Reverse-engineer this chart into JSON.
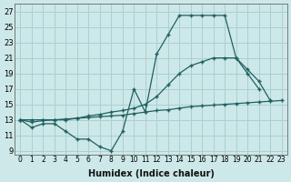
{
  "xlabel": "Humidex (Indice chaleur)",
  "bg_color": "#cde8e8",
  "grid_color": "#aacfcf",
  "line_color": "#206060",
  "xlim": [
    -0.5,
    23.5
  ],
  "ylim": [
    8.5,
    28
  ],
  "xticks": [
    0,
    1,
    2,
    3,
    4,
    5,
    6,
    7,
    8,
    9,
    10,
    11,
    12,
    13,
    14,
    15,
    16,
    17,
    18,
    19,
    20,
    21,
    22,
    23
  ],
  "yticks": [
    9,
    11,
    13,
    15,
    17,
    19,
    21,
    23,
    25,
    27
  ],
  "line1_x": [
    0,
    1,
    2,
    3,
    4,
    5,
    6,
    7,
    8,
    9,
    10,
    11,
    12,
    13,
    14,
    15,
    16,
    17,
    18,
    19,
    20,
    21
  ],
  "line1_y": [
    13,
    12,
    12.5,
    12.5,
    11.5,
    10.5,
    10.5,
    9.5,
    9,
    11.5,
    17,
    14,
    21.5,
    24,
    26.5,
    26.5,
    26.5,
    26.5,
    26.5,
    21,
    19,
    17
  ],
  "line2_x": [
    0,
    1,
    2,
    3,
    4,
    5,
    6,
    7,
    8,
    9,
    10,
    11,
    12,
    13,
    14,
    15,
    16,
    17,
    18,
    19,
    20,
    21,
    22,
    23
  ],
  "line2_y": [
    13,
    12.7,
    12.9,
    13.0,
    13.1,
    13.2,
    13.3,
    13.4,
    13.5,
    13.6,
    13.8,
    14.0,
    14.2,
    14.3,
    14.5,
    14.7,
    14.8,
    14.9,
    15.0,
    15.1,
    15.2,
    15.3,
    15.4,
    15.5
  ],
  "line3_x": [
    0,
    1,
    2,
    3,
    4,
    5,
    6,
    7,
    8,
    9,
    10,
    11,
    12,
    13,
    14,
    15,
    16,
    17,
    18,
    19,
    20,
    21,
    22
  ],
  "line3_y": [
    13,
    13,
    13,
    13,
    13,
    13.2,
    13.5,
    13.7,
    14.0,
    14.2,
    14.5,
    15.0,
    16.0,
    17.5,
    19.0,
    20.0,
    20.5,
    21.0,
    21.0,
    21.0,
    19.5,
    18.0,
    15.5
  ]
}
